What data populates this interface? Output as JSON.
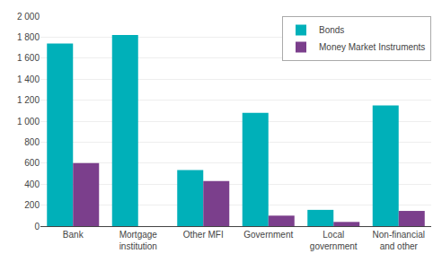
{
  "chart_data": {
    "type": "bar",
    "categories": [
      "Bank",
      "Mortgage\ninstitution",
      "Other MFI",
      "Government",
      "Local\ngovernment",
      "Non-financial\nand other"
    ],
    "series": [
      {
        "name": "Bonds",
        "color": "#00B0B9",
        "values": [
          1740,
          1820,
          535,
          1080,
          155,
          1150
        ]
      },
      {
        "name": "Money Market Instruments",
        "color": "#7B3F8C",
        "values": [
          600,
          0,
          430,
          100,
          40,
          145
        ]
      }
    ],
    "ylim": [
      0,
      2000
    ],
    "yticks": [
      0,
      200,
      400,
      600,
      800,
      {
        "value": 1000,
        "label": "1 000"
      },
      {
        "value": 1200,
        "label": "1 200"
      },
      {
        "value": 1400,
        "label": "1 400"
      },
      {
        "value": 1600,
        "label": "1 600"
      },
      {
        "value": 1800,
        "label": "1 800"
      },
      {
        "value": 2000,
        "label": "2 000"
      }
    ],
    "grid": true,
    "legend": "upper right"
  }
}
